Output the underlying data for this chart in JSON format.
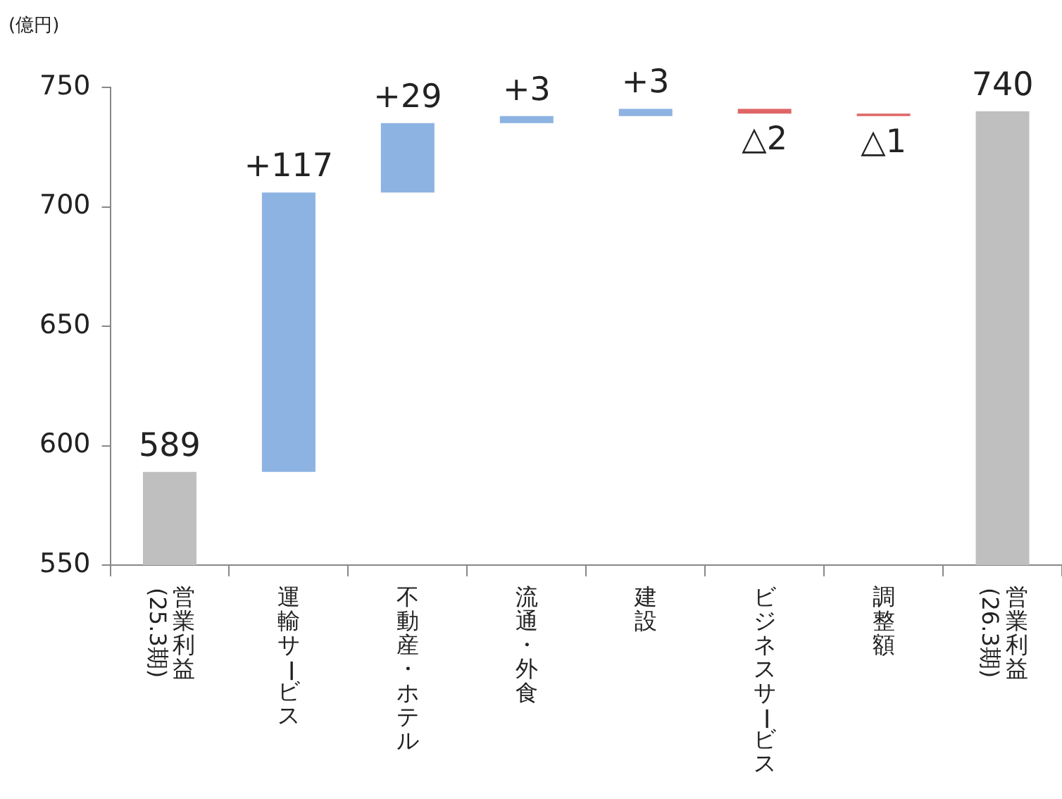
{
  "chart_data": {
    "type": "bar",
    "ylabel": "(億円)",
    "categories": [
      "営業利益\n(25.3期)",
      "運輸サービス",
      "不動産・ホテル",
      "流通・外食",
      "建設",
      "ビジネスサービス",
      "調整額",
      "営業利益\n(26.3期)"
    ],
    "values": [
      589,
      117,
      29,
      3,
      3,
      -2,
      -1,
      740
    ],
    "base": [
      null,
      589,
      706,
      735,
      738,
      741,
      739,
      null
    ],
    "colors": [
      "#bfbfbf",
      "#8db3e2",
      "#8db3e2",
      "#8db3e2",
      "#8db3e2",
      "#e06666",
      "#e06666",
      "#bfbfbf"
    ],
    "value_labels": [
      "589",
      "+117",
      "+29",
      "+3",
      "+3",
      "△2",
      "△1",
      "740"
    ],
    "ylim": [
      550,
      750
    ],
    "yticks": [
      550,
      600,
      650,
      700,
      750
    ],
    "grid": false,
    "legend": false
  }
}
